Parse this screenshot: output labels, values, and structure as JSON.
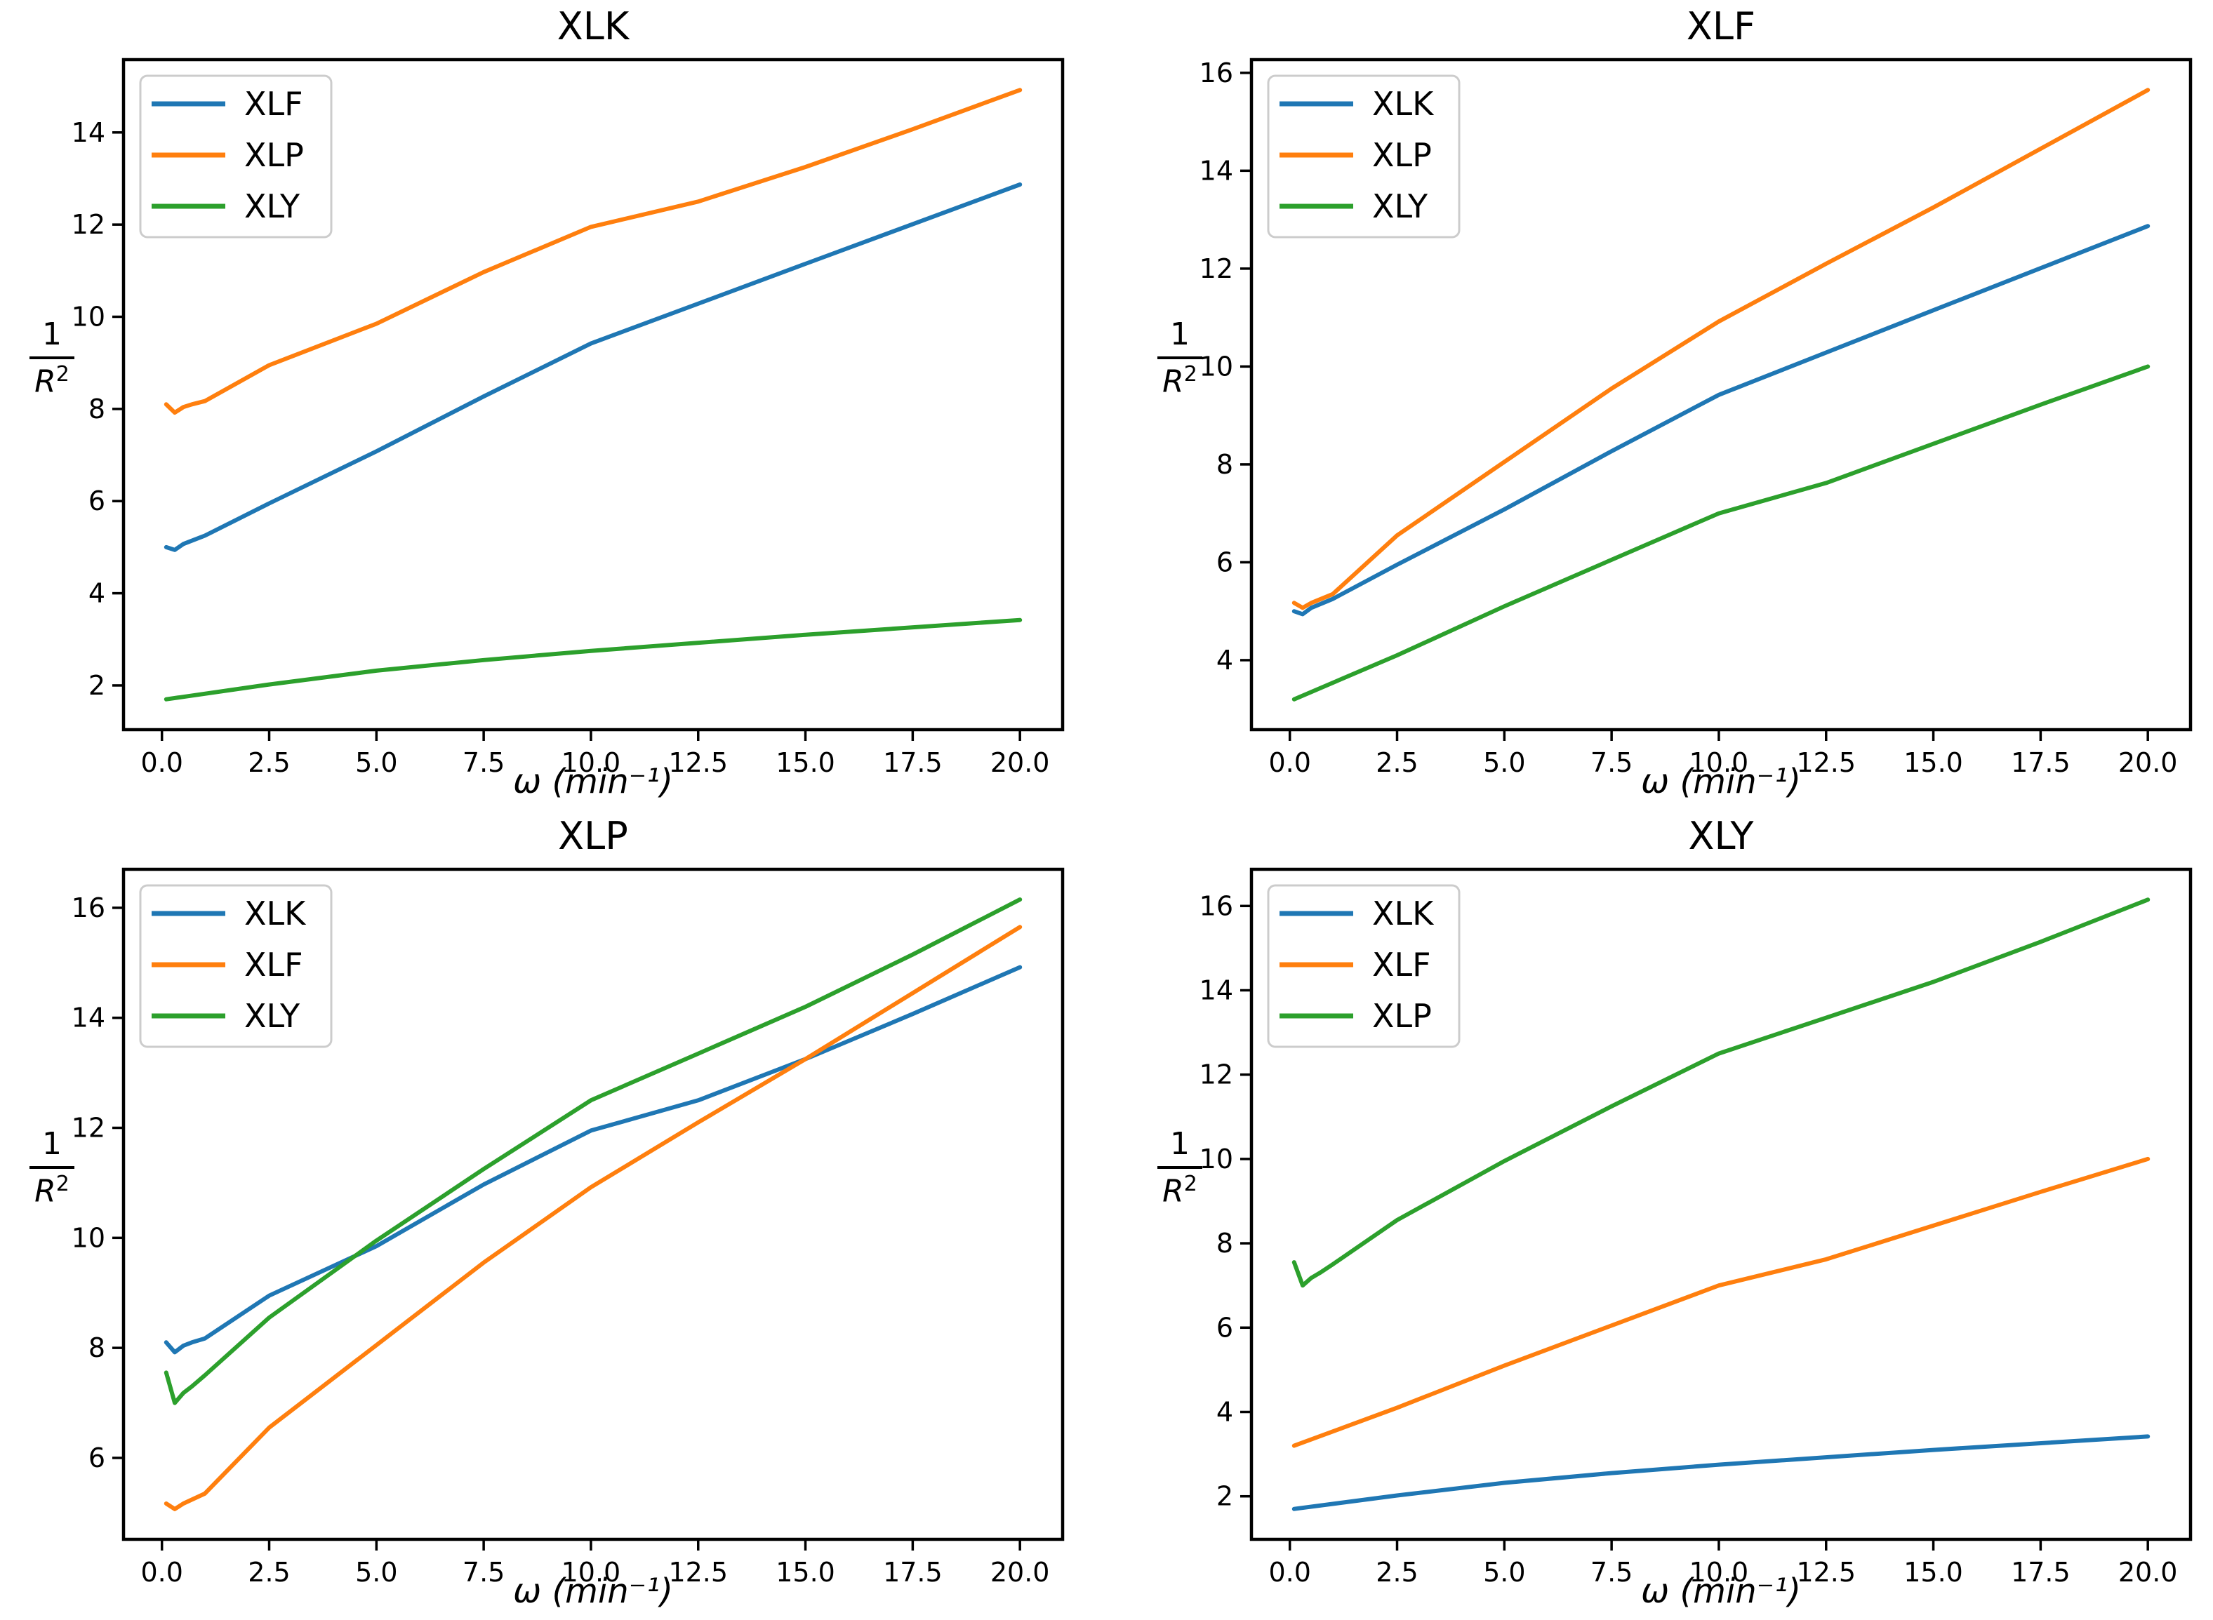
{
  "figure": {
    "background": "#ffffff",
    "text_color": "#000000",
    "rows": 2,
    "cols": 2
  },
  "palette": {
    "blue": "#1f77b4",
    "orange": "#ff7f0e",
    "green": "#2ca02c",
    "legend_border": "#cccccc",
    "axis": "#000000"
  },
  "axis_labels": {
    "xlabel": "ω (min⁻¹)",
    "ylabel": "1/R²",
    "ylabel_numerator": "1",
    "ylabel_denominator_base": "R",
    "ylabel_denominator_exponent": "2"
  },
  "chart_data": [
    {
      "type": "line",
      "title": "XLK",
      "xlabel": "ω (min⁻¹)",
      "ylabel": "1/R²",
      "grid": false,
      "legend_position": "upper left",
      "xlim": [
        -0.895,
        20.995
      ],
      "ylim": [
        1.04,
        15.58
      ],
      "x_ticks": [
        0.0,
        2.5,
        5.0,
        7.5,
        10.0,
        12.5,
        15.0,
        17.5,
        20.0
      ],
      "y_ticks": [
        2,
        4,
        6,
        8,
        10,
        12,
        14
      ],
      "series": [
        {
          "name": "XLF",
          "color": "#1f77b4",
          "x": [
            0.1,
            0.3,
            0.5,
            1,
            2.5,
            5,
            7.5,
            10,
            15,
            20
          ],
          "y": [
            5.0,
            4.94,
            5.07,
            5.25,
            5.95,
            7.08,
            8.27,
            9.42,
            11.15,
            12.87
          ]
        },
        {
          "name": "XLP",
          "color": "#ff7f0e",
          "x": [
            0.1,
            0.3,
            0.5,
            0.7,
            1,
            2.5,
            5,
            7.5,
            10,
            12.5,
            15,
            17.5,
            20
          ],
          "y": [
            8.1,
            7.92,
            8.04,
            8.1,
            8.17,
            8.95,
            9.85,
            10.97,
            11.95,
            12.5,
            13.25,
            14.07,
            14.92
          ]
        },
        {
          "name": "XLY",
          "color": "#2ca02c",
          "x": [
            0.1,
            2.5,
            5,
            7.5,
            10,
            15,
            20
          ],
          "y": [
            1.7,
            2.02,
            2.32,
            2.55,
            2.75,
            3.1,
            3.42
          ]
        }
      ]
    },
    {
      "type": "line",
      "title": "XLF",
      "xlabel": "ω (min⁻¹)",
      "ylabel": "1/R²",
      "grid": false,
      "legend_position": "upper left",
      "xlim": [
        -0.895,
        20.995
      ],
      "ylim": [
        2.58,
        16.27
      ],
      "x_ticks": [
        0.0,
        2.5,
        5.0,
        7.5,
        10.0,
        12.5,
        15.0,
        17.5,
        20.0
      ],
      "y_ticks": [
        4,
        6,
        8,
        10,
        12,
        14,
        16
      ],
      "series": [
        {
          "name": "XLK",
          "color": "#1f77b4",
          "x": [
            0.1,
            0.3,
            0.5,
            1,
            2.5,
            5,
            7.5,
            10,
            15,
            20
          ],
          "y": [
            5.0,
            4.94,
            5.07,
            5.25,
            5.95,
            7.08,
            8.27,
            9.42,
            11.15,
            12.87
          ]
        },
        {
          "name": "XLP",
          "color": "#ff7f0e",
          "x": [
            0.1,
            0.3,
            0.5,
            1,
            2.5,
            5,
            7.5,
            10,
            12.5,
            15,
            17.5,
            20
          ],
          "y": [
            5.17,
            5.07,
            5.17,
            5.35,
            6.55,
            8.05,
            9.55,
            10.92,
            12.1,
            13.25,
            14.45,
            15.65
          ]
        },
        {
          "name": "XLY",
          "color": "#2ca02c",
          "x": [
            0.1,
            2.5,
            5,
            7.5,
            10,
            12.5,
            15,
            17.5,
            20
          ],
          "y": [
            3.2,
            4.1,
            5.1,
            6.05,
            7.0,
            7.62,
            8.42,
            9.22,
            10.0
          ]
        }
      ]
    },
    {
      "type": "line",
      "title": "XLP",
      "xlabel": "ω (min⁻¹)",
      "ylabel": "1/R²",
      "grid": false,
      "legend_position": "upper left",
      "xlim": [
        -0.895,
        20.995
      ],
      "ylim": [
        4.52,
        16.7
      ],
      "x_ticks": [
        0.0,
        2.5,
        5.0,
        7.5,
        10.0,
        12.5,
        15.0,
        17.5,
        20.0
      ],
      "y_ticks": [
        6,
        8,
        10,
        12,
        14,
        16
      ],
      "series": [
        {
          "name": "XLK",
          "color": "#1f77b4",
          "x": [
            0.1,
            0.3,
            0.5,
            0.7,
            1,
            2.5,
            5,
            7.5,
            10,
            12.5,
            15,
            17.5,
            20
          ],
          "y": [
            8.1,
            7.92,
            8.04,
            8.1,
            8.17,
            8.95,
            9.85,
            10.97,
            11.95,
            12.5,
            13.25,
            14.07,
            14.92
          ]
        },
        {
          "name": "XLF",
          "color": "#ff7f0e",
          "x": [
            0.1,
            0.3,
            0.5,
            1,
            2.5,
            5,
            7.5,
            10,
            12.5,
            15,
            17.5,
            20
          ],
          "y": [
            5.17,
            5.07,
            5.17,
            5.35,
            6.55,
            8.05,
            9.55,
            10.92,
            12.1,
            13.25,
            14.45,
            15.65
          ]
        },
        {
          "name": "XLY",
          "color": "#2ca02c",
          "x": [
            0.1,
            0.3,
            0.5,
            0.7,
            1,
            2.5,
            5,
            7.5,
            10,
            12.5,
            15,
            17.5,
            20
          ],
          "y": [
            7.55,
            7.0,
            7.18,
            7.3,
            7.5,
            8.55,
            9.95,
            11.25,
            12.5,
            13.35,
            14.2,
            15.15,
            16.15
          ]
        }
      ]
    },
    {
      "type": "line",
      "title": "XLY",
      "xlabel": "ω (min⁻¹)",
      "ylabel": "1/R²",
      "grid": false,
      "legend_position": "upper left",
      "xlim": [
        -0.895,
        20.995
      ],
      "ylim": [
        0.98,
        16.87
      ],
      "x_ticks": [
        0.0,
        2.5,
        5.0,
        7.5,
        10.0,
        12.5,
        15.0,
        17.5,
        20.0
      ],
      "y_ticks": [
        2,
        4,
        6,
        8,
        10,
        12,
        14,
        16
      ],
      "series": [
        {
          "name": "XLK",
          "color": "#1f77b4",
          "x": [
            0.1,
            2.5,
            5,
            7.5,
            10,
            15,
            20
          ],
          "y": [
            1.7,
            2.02,
            2.32,
            2.55,
            2.75,
            3.1,
            3.42
          ]
        },
        {
          "name": "XLF",
          "color": "#ff7f0e",
          "x": [
            0.1,
            2.5,
            5,
            7.5,
            10,
            12.5,
            15,
            17.5,
            20
          ],
          "y": [
            3.2,
            4.1,
            5.1,
            6.05,
            7.0,
            7.62,
            8.42,
            9.22,
            10.0
          ]
        },
        {
          "name": "XLP",
          "color": "#2ca02c",
          "x": [
            0.1,
            0.3,
            0.5,
            0.7,
            1,
            2.5,
            5,
            7.5,
            10,
            12.5,
            15,
            17.5,
            20
          ],
          "y": [
            7.55,
            7.0,
            7.18,
            7.3,
            7.5,
            8.55,
            9.95,
            11.25,
            12.5,
            13.35,
            14.2,
            15.15,
            16.15
          ]
        }
      ]
    }
  ]
}
